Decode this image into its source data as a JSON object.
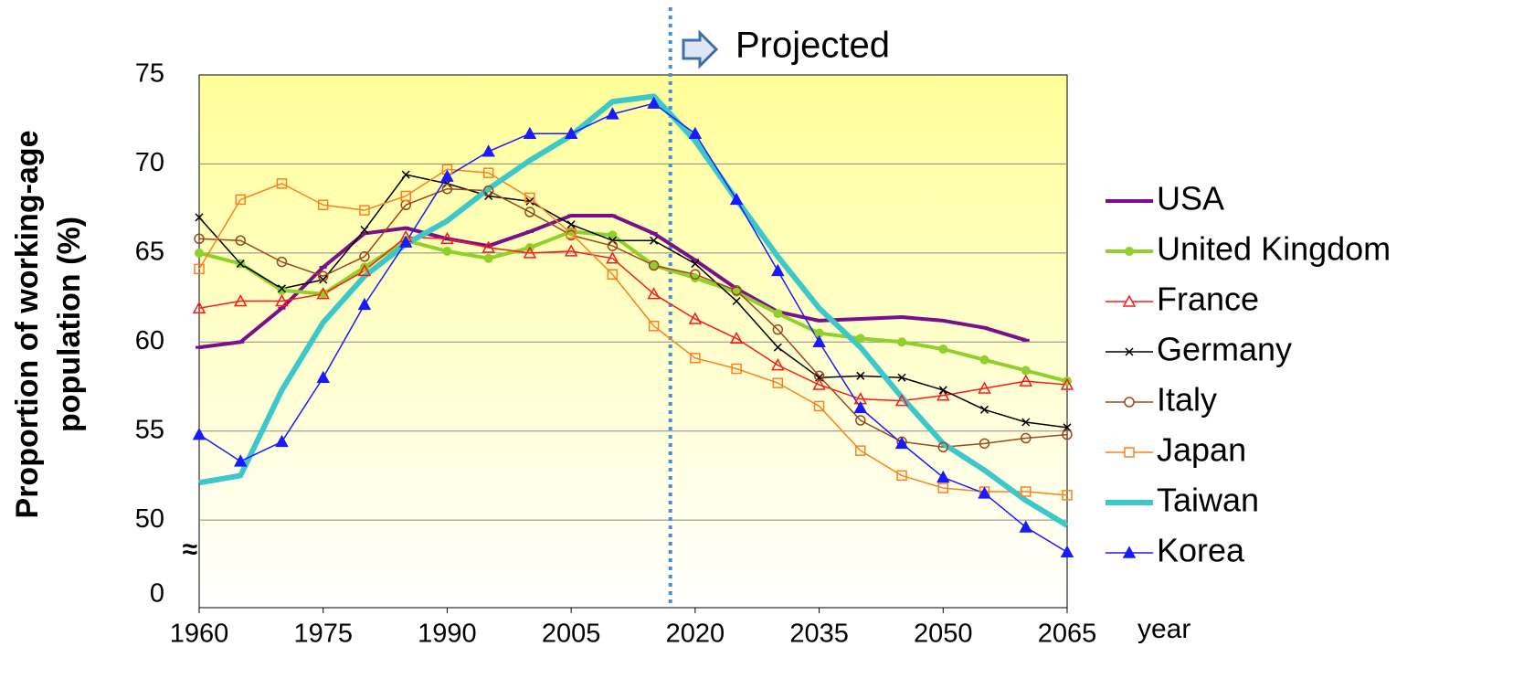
{
  "chart_data": {
    "type": "line",
    "ylabel": [
      "Proportion of working-age",
      "population  (%)"
    ],
    "xlabel": "year",
    "annotation": {
      "text": "Projected",
      "x": 2017
    },
    "break_symbol": "≈",
    "x": [
      1960,
      1965,
      1970,
      1975,
      1980,
      1985,
      1990,
      1995,
      2000,
      2005,
      2010,
      2015,
      2020,
      2025,
      2030,
      2035,
      2040,
      2045,
      2050,
      2055,
      2060,
      2065
    ],
    "xlim": [
      1960,
      2065
    ],
    "xticks": [
      1960,
      1975,
      1990,
      2005,
      2020,
      2035,
      2050,
      2065
    ],
    "ylim": [
      0,
      75
    ],
    "ybreak": [
      0,
      45.8
    ],
    "yticks": [
      0,
      50,
      55,
      60,
      65,
      70,
      75
    ],
    "grid": true,
    "legend": "right",
    "series": [
      {
        "name": "USA",
        "color": "#7b0f8a",
        "width": 4,
        "marker": "dash",
        "values": [
          59.7,
          60.0,
          61.9,
          64.2,
          66.1,
          66.4,
          65.8,
          65.4,
          66.2,
          67.1,
          67.1,
          66.1,
          64.6,
          63.0,
          61.7,
          61.2,
          61.3,
          61.4,
          61.2,
          60.8,
          60.1,
          null
        ]
      },
      {
        "name": "United Kingdom",
        "color": "#8fd12a",
        "width": 4,
        "marker": "dot",
        "values": [
          65.0,
          64.4,
          62.9,
          62.7,
          64.2,
          65.7,
          65.1,
          64.7,
          65.3,
          66.2,
          66.0,
          64.3,
          63.6,
          62.8,
          61.6,
          60.5,
          60.2,
          60.0,
          59.6,
          59.0,
          58.4,
          57.8
        ]
      },
      {
        "name": "France",
        "color": "#ff1a1a",
        "width": 1.5,
        "marker": "triangle-open",
        "values": [
          61.9,
          62.3,
          62.3,
          62.7,
          64.0,
          65.9,
          65.8,
          65.3,
          65.0,
          65.1,
          64.7,
          62.7,
          61.3,
          60.2,
          58.7,
          57.6,
          56.8,
          56.7,
          57.0,
          57.4,
          57.8,
          57.6
        ]
      },
      {
        "name": "Germany",
        "color": "#000000",
        "width": 1.5,
        "marker": "cross",
        "values": [
          67.0,
          64.4,
          63.0,
          63.5,
          66.3,
          69.4,
          68.9,
          68.2,
          67.9,
          66.6,
          65.7,
          65.7,
          64.4,
          62.3,
          59.7,
          58.0,
          58.1,
          58.0,
          57.3,
          56.2,
          55.5,
          55.2
        ]
      },
      {
        "name": "Italy",
        "color": "#a0461e",
        "width": 1.5,
        "marker": "circle-open",
        "values": [
          65.8,
          65.7,
          64.5,
          63.7,
          64.8,
          67.7,
          68.6,
          68.5,
          67.3,
          66.0,
          65.4,
          64.3,
          63.8,
          62.9,
          60.7,
          58.1,
          55.6,
          54.4,
          54.1,
          54.3,
          54.6,
          54.8
        ]
      },
      {
        "name": "Japan",
        "color": "#ff7f1e",
        "width": 1.5,
        "marker": "square-open",
        "values": [
          64.1,
          68.0,
          68.9,
          67.7,
          67.4,
          68.2,
          69.7,
          69.5,
          68.1,
          66.1,
          63.8,
          60.9,
          59.1,
          58.5,
          57.7,
          56.4,
          53.9,
          52.5,
          51.8,
          51.6,
          51.6,
          51.4
        ]
      },
      {
        "name": "Taiwan",
        "color": "#3cc8c8",
        "width": 6,
        "marker": "none",
        "values": [
          52.1,
          52.5,
          57.3,
          61.1,
          63.7,
          65.5,
          66.8,
          68.6,
          70.2,
          71.6,
          73.5,
          73.8,
          71.3,
          68.0,
          64.8,
          61.9,
          59.7,
          56.9,
          54.3,
          52.8,
          51.1,
          49.7
        ]
      },
      {
        "name": "Korea",
        "color": "#1a1aff",
        "width": 1.5,
        "marker": "triangle",
        "values": [
          54.8,
          53.3,
          54.4,
          58.0,
          62.1,
          65.6,
          69.3,
          70.7,
          71.7,
          71.7,
          72.8,
          73.4,
          71.7,
          68.0,
          64.0,
          60.0,
          56.3,
          54.3,
          52.4,
          51.5,
          49.6,
          48.2
        ]
      }
    ]
  }
}
